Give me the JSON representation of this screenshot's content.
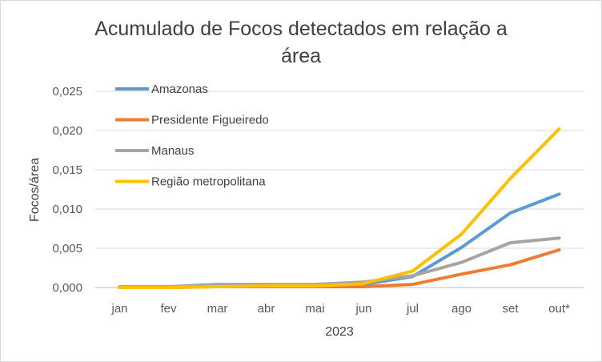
{
  "chart_data": {
    "type": "line",
    "title": "Acumulado de Focos detectados em relação a área",
    "xlabel": "2023",
    "ylabel": "Focos/área",
    "ylim": [
      0,
      0.025
    ],
    "yticks": [
      "0,000",
      "0,005",
      "0,010",
      "0,015",
      "0,020",
      "0,025"
    ],
    "categories": [
      "jan",
      "fev",
      "mar",
      "abr",
      "mai",
      "jun",
      "jul",
      "ago",
      "set",
      "out*"
    ],
    "legend_position": "top-left",
    "grid": true,
    "series": [
      {
        "name": "Amazonas",
        "color": "#5b9bd5",
        "values": [
          0.0001,
          0.0001,
          0.0002,
          0.0002,
          0.0002,
          0.0004,
          0.0014,
          0.0051,
          0.0095,
          0.0119
        ]
      },
      {
        "name": "Presidente Figueiredo",
        "color": "#ed7d31",
        "values": [
          0.0,
          0.0,
          0.0001,
          0.0001,
          0.0001,
          0.0001,
          0.0004,
          0.0017,
          0.0029,
          0.0048
        ]
      },
      {
        "name": "Manaus",
        "color": "#a5a5a5",
        "values": [
          0.0001,
          0.0001,
          0.0004,
          0.0004,
          0.0004,
          0.0007,
          0.0015,
          0.0032,
          0.0057,
          0.0063
        ]
      },
      {
        "name": "Região metropolitana",
        "color": "#ffc000",
        "values": [
          0.0,
          0.0,
          0.0001,
          0.0002,
          0.0002,
          0.0005,
          0.0021,
          0.0068,
          0.0139,
          0.0202
        ]
      }
    ]
  }
}
